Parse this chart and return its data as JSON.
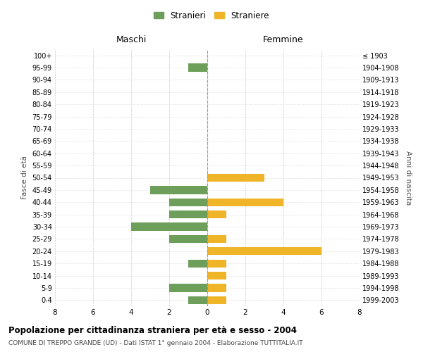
{
  "age_groups": [
    "0-4",
    "5-9",
    "10-14",
    "15-19",
    "20-24",
    "25-29",
    "30-34",
    "35-39",
    "40-44",
    "45-49",
    "50-54",
    "55-59",
    "60-64",
    "65-69",
    "70-74",
    "75-79",
    "80-84",
    "85-89",
    "90-94",
    "95-99",
    "100+"
  ],
  "birth_years": [
    "1999-2003",
    "1994-1998",
    "1989-1993",
    "1984-1988",
    "1979-1983",
    "1974-1978",
    "1969-1973",
    "1964-1968",
    "1959-1963",
    "1954-1958",
    "1949-1953",
    "1944-1948",
    "1939-1943",
    "1934-1938",
    "1929-1933",
    "1924-1928",
    "1919-1923",
    "1914-1918",
    "1909-1913",
    "1904-1908",
    "≤ 1903"
  ],
  "males": [
    1,
    2,
    0,
    1,
    0,
    2,
    4,
    2,
    2,
    3,
    0,
    0,
    0,
    0,
    0,
    0,
    0,
    0,
    0,
    1,
    0
  ],
  "females": [
    1,
    1,
    1,
    1,
    6,
    1,
    0,
    1,
    4,
    0,
    3,
    0,
    0,
    0,
    0,
    0,
    0,
    0,
    0,
    0,
    0
  ],
  "male_color": "#6d9e5a",
  "female_color": "#f0b429",
  "xlim": 8,
  "title": "Popolazione per cittadinanza straniera per età e sesso - 2004",
  "subtitle": "COMUNE DI TREPPO GRANDE (UD) - Dati ISTAT 1° gennaio 2004 - Elaborazione TUTTITALIA.IT",
  "left_label": "Maschi",
  "right_label": "Femmine",
  "y_left_label": "Fasce di età",
  "y_right_label": "Anni di nascita",
  "legend_male": "Stranieri",
  "legend_female": "Straniere",
  "bg_color": "#ffffff",
  "grid_color": "#cccccc"
}
